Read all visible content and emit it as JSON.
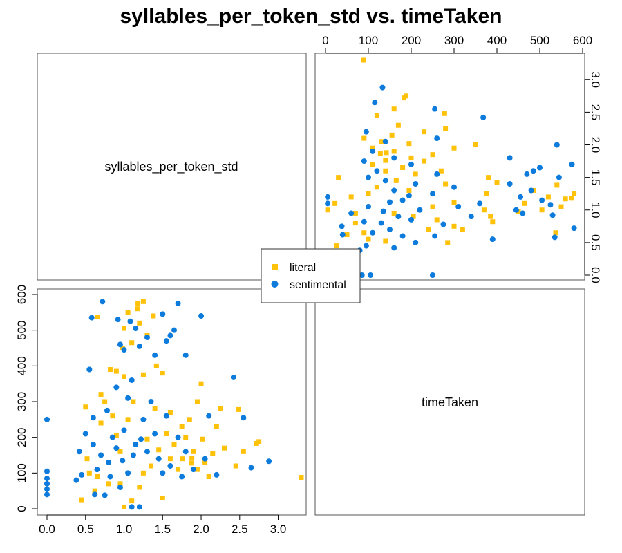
{
  "title": "syllables_per_token_std vs. timeTaken",
  "legend": {
    "position": "center",
    "entries": [
      {
        "label": "literal",
        "color": "#FFC20A",
        "marker": "square"
      },
      {
        "label": "sentimental",
        "color": "#0C7BDC",
        "marker": "circle"
      }
    ]
  },
  "chart_data": {
    "type": "scatter",
    "layout": "pairs-matrix",
    "grid": false,
    "variables": [
      "syllables_per_token_std",
      "timeTaken"
    ],
    "panels": [
      {
        "position": "top-right",
        "x_variable": "timeTaken",
        "y_variable": "syllables_per_token_std",
        "xlim": [
          0,
          600
        ],
        "ylim": [
          0,
          3.3
        ],
        "x_ticks": [
          "0",
          "100",
          "200",
          "300",
          "400",
          "500",
          "600"
        ],
        "y_ticks": [
          "0.0",
          "0.5",
          "1.0",
          "1.5",
          "2.0",
          "2.5",
          "3.0"
        ]
      },
      {
        "position": "bottom-left",
        "x_variable": "syllables_per_token_std",
        "y_variable": "timeTaken",
        "xlim": [
          0,
          3.3
        ],
        "ylim": [
          0,
          600
        ],
        "x_ticks": [
          "0.0",
          "0.5",
          "1.0",
          "1.5",
          "2.0",
          "2.5",
          "3.0"
        ],
        "y_ticks": [
          "0",
          "100",
          "200",
          "300",
          "400",
          "500",
          "600"
        ]
      }
    ],
    "series": [
      {
        "name": "literal",
        "points": [
          [
            3.3,
            88
          ],
          [
            1.87,
            128
          ],
          [
            1.88,
            142
          ],
          [
            2.48,
            278
          ],
          [
            2.72,
            183
          ],
          [
            2.75,
            188
          ],
          [
            2.55,
            160
          ],
          [
            2.15,
            155
          ],
          [
            1.95,
            300
          ],
          [
            2.0,
            350
          ],
          [
            1.18,
            575
          ],
          [
            1.25,
            580
          ],
          [
            0.65,
            537
          ],
          [
            1.05,
            550
          ],
          [
            1.17,
            560
          ],
          [
            1.38,
            540
          ],
          [
            1.2,
            520
          ],
          [
            1.0,
            505
          ],
          [
            1.3,
            485
          ],
          [
            1.1,
            465
          ],
          [
            0.98,
            450
          ],
          [
            0.82,
            390
          ],
          [
            0.9,
            385
          ],
          [
            1.42,
            400
          ],
          [
            1.5,
            380
          ],
          [
            1.0,
            370
          ],
          [
            1.25,
            375
          ],
          [
            0.5,
            285
          ],
          [
            0.7,
            320
          ],
          [
            0.75,
            300
          ],
          [
            2.45,
            120
          ],
          [
            2.1,
            90
          ],
          [
            2.05,
            130
          ],
          [
            1.95,
            110
          ],
          [
            1.85,
            250
          ],
          [
            1.6,
            270
          ],
          [
            1.75,
            230
          ],
          [
            2.2,
            230
          ],
          [
            0.45,
            25
          ],
          [
            0.62,
            50
          ],
          [
            0.8,
            70
          ],
          [
            1.0,
            5
          ],
          [
            1.1,
            22
          ],
          [
            1.5,
            30
          ],
          [
            0.52,
            140
          ],
          [
            0.55,
            100
          ],
          [
            0.9,
            205
          ],
          [
            1.3,
            195
          ],
          [
            1.45,
            165
          ],
          [
            1.65,
            180
          ],
          [
            0.95,
            70
          ],
          [
            1.2,
            60
          ],
          [
            0.7,
            240
          ],
          [
            1.55,
            210
          ],
          [
            2.3,
            170
          ],
          [
            2.02,
            195
          ],
          [
            1.76,
            140
          ],
          [
            1.35,
            120
          ],
          [
            1.12,
            300
          ],
          [
            0.85,
            260
          ],
          [
            1.6,
            140
          ],
          [
            1.8,
            200
          ],
          [
            1.05,
            250
          ],
          [
            1.4,
            280
          ],
          [
            0.65,
            90
          ],
          [
            1.9,
            160
          ],
          [
            2.25,
            280
          ],
          [
            1.25,
            100
          ],
          [
            1.7,
            110
          ],
          [
            0.95,
            160
          ]
        ]
      },
      {
        "name": "sentimental",
        "points": [
          [
            0.0,
            40
          ],
          [
            0.0,
            55
          ],
          [
            0.0,
            70
          ],
          [
            0.0,
            85
          ],
          [
            0.0,
            105
          ],
          [
            0.0,
            250
          ],
          [
            2.88,
            133
          ],
          [
            2.65,
            115
          ],
          [
            2.55,
            255
          ],
          [
            2.42,
            368
          ],
          [
            0.72,
            580
          ],
          [
            1.7,
            575
          ],
          [
            0.58,
            535
          ],
          [
            0.92,
            530
          ],
          [
            1.08,
            525
          ],
          [
            1.5,
            545
          ],
          [
            1.65,
            500
          ],
          [
            1.55,
            470
          ],
          [
            1.0,
            445
          ],
          [
            0.95,
            460
          ],
          [
            1.3,
            480
          ],
          [
            1.6,
            485
          ],
          [
            2.0,
            540
          ],
          [
            0.55,
            390
          ],
          [
            1.8,
            430
          ],
          [
            1.15,
            505
          ],
          [
            1.2,
            455
          ],
          [
            1.4,
            430
          ],
          [
            0.9,
            340
          ],
          [
            1.1,
            360
          ],
          [
            1.05,
            310
          ],
          [
            0.78,
            275
          ],
          [
            0.6,
            255
          ],
          [
            0.5,
            210
          ],
          [
            0.42,
            160
          ],
          [
            0.45,
            95
          ],
          [
            0.38,
            80
          ],
          [
            0.62,
            40
          ],
          [
            0.75,
            38
          ],
          [
            1.1,
            5
          ],
          [
            1.2,
            5
          ],
          [
            0.95,
            60
          ],
          [
            0.7,
            150
          ],
          [
            0.8,
            130
          ],
          [
            0.85,
            200
          ],
          [
            0.9,
            170
          ],
          [
            1.0,
            220
          ],
          [
            1.15,
            180
          ],
          [
            1.3,
            160
          ],
          [
            1.45,
            140
          ],
          [
            1.5,
            100
          ],
          [
            1.6,
            120
          ],
          [
            1.7,
            200
          ],
          [
            1.8,
            160
          ],
          [
            1.9,
            110
          ],
          [
            2.05,
            140
          ],
          [
            2.2,
            95
          ],
          [
            1.25,
            250
          ],
          [
            1.05,
            100
          ],
          [
            0.82,
            90
          ],
          [
            0.65,
            110
          ],
          [
            1.35,
            300
          ],
          [
            1.55,
            260
          ],
          [
            0.98,
            135
          ],
          [
            1.12,
            150
          ],
          [
            1.22,
            195
          ],
          [
            1.4,
            210
          ],
          [
            0.6,
            180
          ],
          [
            1.75,
            90
          ],
          [
            2.1,
            260
          ]
        ]
      }
    ]
  }
}
